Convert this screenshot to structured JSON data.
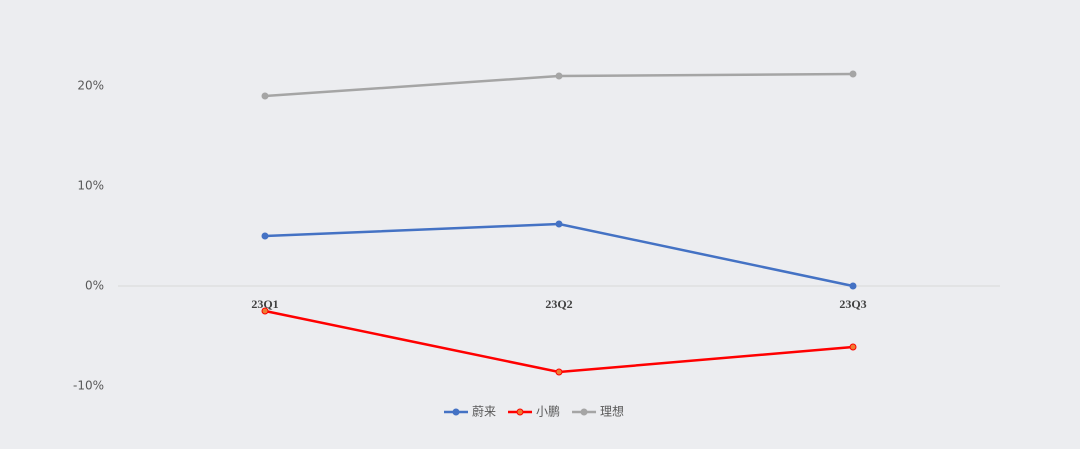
{
  "chart_data": {
    "type": "line",
    "categories": [
      "23Q1",
      "23Q2",
      "23Q3"
    ],
    "series": [
      {
        "name": "蔚来",
        "color": "#4472c4",
        "values": [
          5.0,
          6.2,
          0.0
        ]
      },
      {
        "name": "小鹏",
        "color": "#ff0000",
        "marker_fill": "#ed7d31",
        "values": [
          -2.5,
          -8.6,
          -6.1
        ]
      },
      {
        "name": "理想",
        "color": "#a5a5a5",
        "values": [
          19.0,
          21.0,
          21.2
        ]
      }
    ],
    "ylim": [
      -10,
      20
    ],
    "yticks": [
      {
        "value": -10,
        "label": "-10%"
      },
      {
        "value": 0,
        "label": "0%"
      },
      {
        "value": 10,
        "label": "10%"
      },
      {
        "value": 20,
        "label": "20%"
      }
    ],
    "legend": "bottom"
  }
}
